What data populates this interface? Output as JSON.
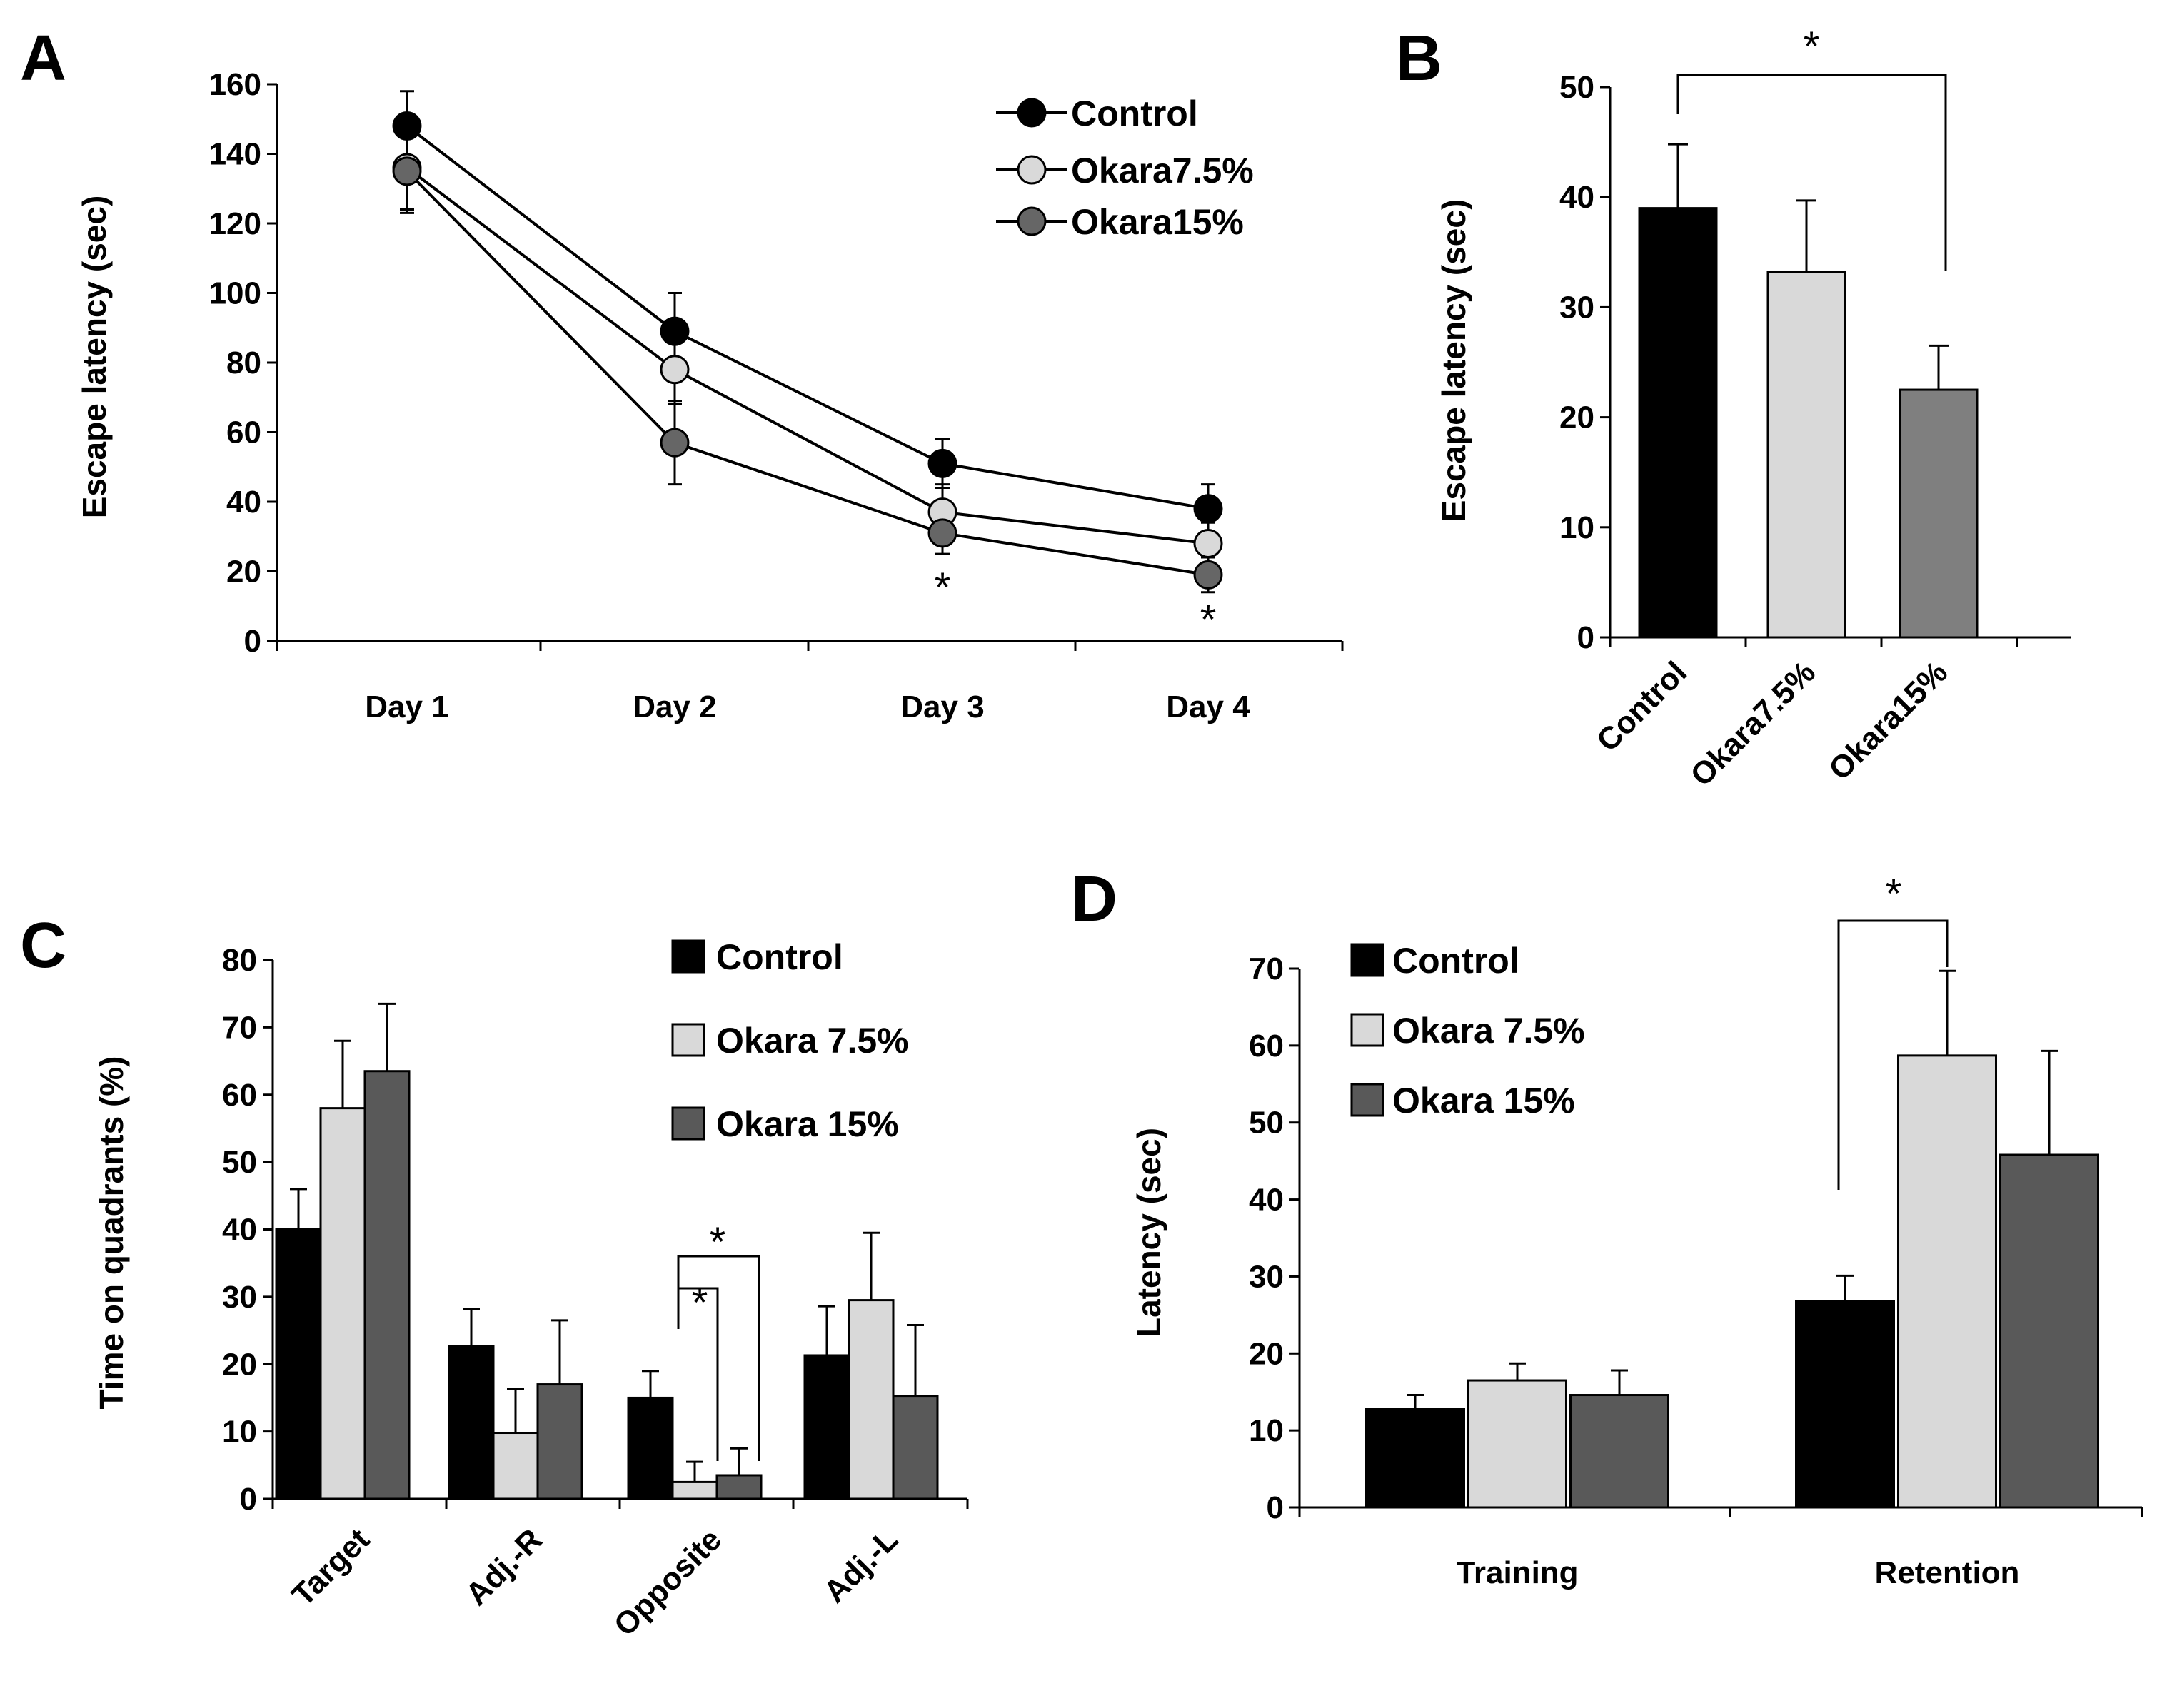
{
  "colors": {
    "control": "#000000",
    "okara75": "#d9d9d9",
    "okara15_line": "#666666",
    "okara15_bar": "#595959",
    "okara15_barB": "#7f7f7f"
  },
  "chart_data": [
    {
      "panel": "A",
      "type": "line",
      "ylabel": "Escape latency (sec)",
      "xlabel": "",
      "categories": [
        "Day 1",
        "Day 2",
        "Day 3",
        "Day 4"
      ],
      "ylim": [
        0,
        160
      ],
      "yticks": [
        "0",
        "20",
        "40",
        "60",
        "80",
        "100",
        "120",
        "140",
        "160"
      ],
      "series": [
        {
          "name": "Control",
          "values": [
            148,
            89,
            51,
            38
          ],
          "errors": [
            10,
            11,
            7,
            7
          ]
        },
        {
          "name": "Okara7.5%",
          "values": [
            136,
            78,
            37,
            28
          ],
          "errors": [
            12,
            10,
            8,
            6
          ]
        },
        {
          "name": "Okara15%",
          "values": [
            135,
            57,
            31,
            19
          ],
          "errors": [
            12,
            12,
            6,
            5
          ]
        }
      ],
      "annotations": [
        "*",
        "*"
      ]
    },
    {
      "panel": "B",
      "type": "bar",
      "ylabel": "Escape latency (sec)",
      "categories": [
        "Control",
        "Okara7.5%",
        "Okara15%"
      ],
      "values": [
        39,
        33.2,
        22.5
      ],
      "errors": [
        5.8,
        6.5,
        4
      ],
      "ylim": [
        0,
        50
      ],
      "yticks": [
        "0",
        "10",
        "20",
        "30",
        "40",
        "50"
      ],
      "annotations": [
        "*"
      ]
    },
    {
      "panel": "C",
      "type": "bar",
      "ylabel": "Time on quadrants (%)",
      "categories": [
        "Target",
        "Adj.-R",
        "Opposite",
        "Adj.-L"
      ],
      "ylim": [
        0,
        80
      ],
      "yticks": [
        "0",
        "10",
        "20",
        "30",
        "40",
        "50",
        "60",
        "70",
        "80"
      ],
      "series": [
        {
          "name": "Control",
          "values": [
            40,
            22.7,
            15,
            21.3
          ],
          "errors": [
            6,
            5.5,
            4,
            7.3
          ]
        },
        {
          "name": "Okara 7.5%",
          "values": [
            58,
            9.8,
            2.5,
            29.5
          ],
          "errors": [
            10,
            6.5,
            3,
            10
          ]
        },
        {
          "name": "Okara 15%",
          "values": [
            63.5,
            17,
            3.5,
            15.3
          ],
          "errors": [
            10,
            9.5,
            4,
            10.5
          ]
        }
      ],
      "annotations": [
        "*",
        "*"
      ]
    },
    {
      "panel": "D",
      "type": "bar",
      "ylabel": "Latency (sec)",
      "categories": [
        "Training",
        "Retention"
      ],
      "ylim": [
        0,
        70
      ],
      "yticks": [
        "0",
        "10",
        "20",
        "30",
        "40",
        "50",
        "60",
        "70"
      ],
      "series": [
        {
          "name": "Control",
          "values": [
            12.8,
            26.8
          ],
          "errors": [
            1.8,
            3.3
          ]
        },
        {
          "name": "Okara 7.5%",
          "values": [
            16.5,
            58.7
          ],
          "errors": [
            2.2,
            11
          ]
        },
        {
          "name": "Okara 15%",
          "values": [
            14.6,
            45.8
          ],
          "errors": [
            3.2,
            13.5
          ]
        }
      ],
      "annotations": [
        "*"
      ]
    }
  ]
}
